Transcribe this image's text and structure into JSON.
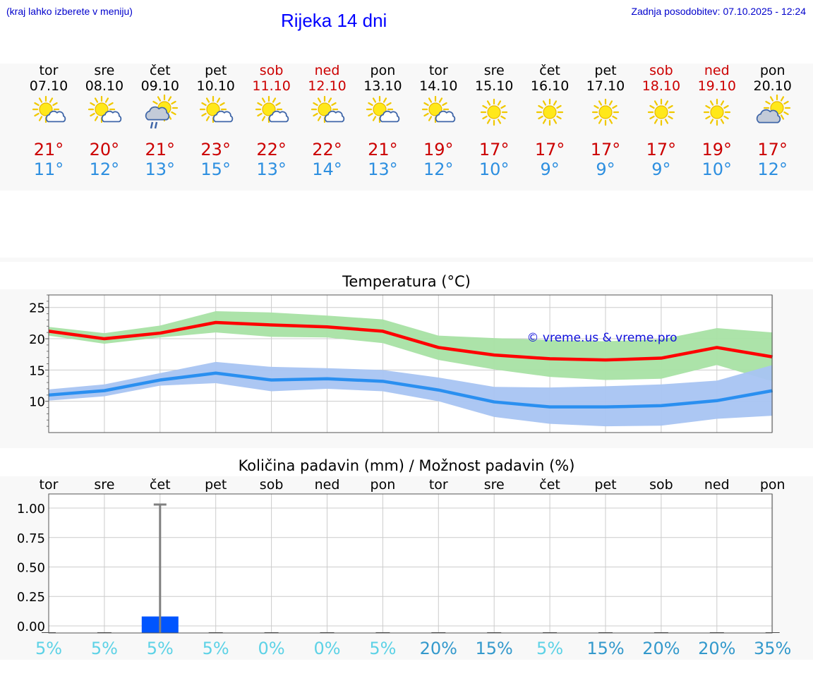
{
  "header": {
    "menu_hint": "(kraj lahko izberete v meniju)",
    "title": "Rijeka 14 dni",
    "last_update": "Zadnja posodobitev: 07.10.2025 - 12:24"
  },
  "colors": {
    "weekday": "#000000",
    "weekend": "#cc0000",
    "tmax": "#cc0000",
    "tmin": "#2d8fe0",
    "max_line": "#ff0000",
    "max_band": "#a8e2a4",
    "min_line": "#2a8ff0",
    "min_band": "#a8c4f2",
    "precip_bar": "#0055ff",
    "prob_low": "#5dd2e6",
    "prob_high": "#3399cc"
  },
  "days": [
    {
      "name": "tor",
      "date": "07.10",
      "weekend": false,
      "icon": "sun-cloud-icon",
      "tmax": "21°",
      "tmin": "11°"
    },
    {
      "name": "sre",
      "date": "08.10",
      "weekend": false,
      "icon": "sun-cloud-icon",
      "tmax": "20°",
      "tmin": "12°"
    },
    {
      "name": "čet",
      "date": "09.10",
      "weekend": false,
      "icon": "sun-cloud-rain-icon",
      "tmax": "21°",
      "tmin": "13°"
    },
    {
      "name": "pet",
      "date": "10.10",
      "weekend": false,
      "icon": "sun-cloud-icon",
      "tmax": "23°",
      "tmin": "15°"
    },
    {
      "name": "sob",
      "date": "11.10",
      "weekend": true,
      "icon": "sun-cloud-icon",
      "tmax": "22°",
      "tmin": "13°"
    },
    {
      "name": "ned",
      "date": "12.10",
      "weekend": true,
      "icon": "sun-cloud-icon",
      "tmax": "22°",
      "tmin": "14°"
    },
    {
      "name": "pon",
      "date": "13.10",
      "weekend": false,
      "icon": "sun-cloud-icon",
      "tmax": "21°",
      "tmin": "13°"
    },
    {
      "name": "tor",
      "date": "14.10",
      "weekend": false,
      "icon": "sun-cloud-icon",
      "tmax": "19°",
      "tmin": "12°"
    },
    {
      "name": "sre",
      "date": "15.10",
      "weekend": false,
      "icon": "sun-icon",
      "tmax": "17°",
      "tmin": "10°"
    },
    {
      "name": "čet",
      "date": "16.10",
      "weekend": false,
      "icon": "sun-icon",
      "tmax": "17°",
      "tmin": "9°"
    },
    {
      "name": "pet",
      "date": "17.10",
      "weekend": false,
      "icon": "sun-icon",
      "tmax": "17°",
      "tmin": "9°"
    },
    {
      "name": "sob",
      "date": "18.10",
      "weekend": true,
      "icon": "sun-icon",
      "tmax": "17°",
      "tmin": "9°"
    },
    {
      "name": "ned",
      "date": "19.10",
      "weekend": true,
      "icon": "sun-icon",
      "tmax": "19°",
      "tmin": "10°"
    },
    {
      "name": "pon",
      "date": "20.10",
      "weekend": false,
      "icon": "cloud-sun-icon",
      "tmax": "17°",
      "tmin": "12°"
    }
  ],
  "chart_data": [
    {
      "type": "line",
      "title": "Temperatura (°C)",
      "x_count": 14,
      "ylim": [
        5,
        27
      ],
      "yticks": [
        10,
        15,
        20,
        25
      ],
      "watermark": "© vreme.us & vreme.pro",
      "series": [
        {
          "name": "max",
          "values": [
            21.2,
            20.0,
            20.9,
            22.6,
            22.2,
            21.9,
            21.2,
            18.6,
            17.4,
            16.8,
            16.6,
            16.9,
            18.6,
            17.1
          ],
          "band_low": [
            20.5,
            19.2,
            20.2,
            21.0,
            20.3,
            20.2,
            19.3,
            16.6,
            15.1,
            13.9,
            13.4,
            13.6,
            15.8,
            13.2
          ],
          "band_high": [
            21.9,
            20.9,
            22.1,
            24.4,
            24.2,
            23.7,
            23.1,
            20.5,
            20.1,
            19.8,
            19.6,
            19.9,
            21.7,
            21.0
          ]
        },
        {
          "name": "min",
          "values": [
            11.0,
            11.7,
            13.4,
            14.5,
            13.4,
            13.6,
            13.2,
            11.8,
            9.9,
            9.1,
            9.1,
            9.3,
            10.1,
            11.7
          ],
          "band_low": [
            10.1,
            10.8,
            12.5,
            12.9,
            11.6,
            12.0,
            11.6,
            10.0,
            7.5,
            6.4,
            6.0,
            6.1,
            7.2,
            7.7
          ],
          "band_high": [
            11.9,
            12.7,
            14.5,
            16.3,
            15.5,
            15.3,
            15.0,
            13.8,
            12.3,
            12.2,
            12.4,
            12.7,
            13.3,
            15.8
          ]
        }
      ]
    },
    {
      "type": "bar",
      "title": "Količina padavin (mm) / Možnost padavin (%)",
      "categories": [
        "tor",
        "sre",
        "čet",
        "pet",
        "sob",
        "ned",
        "pon",
        "tor",
        "sre",
        "čet",
        "pet",
        "sob",
        "ned",
        "pon"
      ],
      "values": [
        0,
        0,
        0.08,
        0,
        0,
        0,
        0,
        0,
        0,
        0,
        0,
        0,
        0,
        0
      ],
      "error_high": [
        null,
        null,
        1.03,
        null,
        null,
        null,
        null,
        null,
        null,
        null,
        null,
        null,
        null,
        null
      ],
      "ylim": [
        -0.06,
        1.12
      ],
      "yticks": [
        0.0,
        0.25,
        0.5,
        0.75,
        1.0
      ],
      "ytick_labels": [
        "0.00",
        "0.25",
        "0.50",
        "0.75",
        "1.00"
      ],
      "probability_labels": [
        "5%",
        "5%",
        "5%",
        "5%",
        "0%",
        "0%",
        "5%",
        "20%",
        "15%",
        "5%",
        "15%",
        "20%",
        "20%",
        "35%"
      ],
      "probability_values": [
        5,
        5,
        5,
        5,
        0,
        0,
        5,
        20,
        15,
        5,
        15,
        20,
        20,
        35
      ]
    }
  ]
}
